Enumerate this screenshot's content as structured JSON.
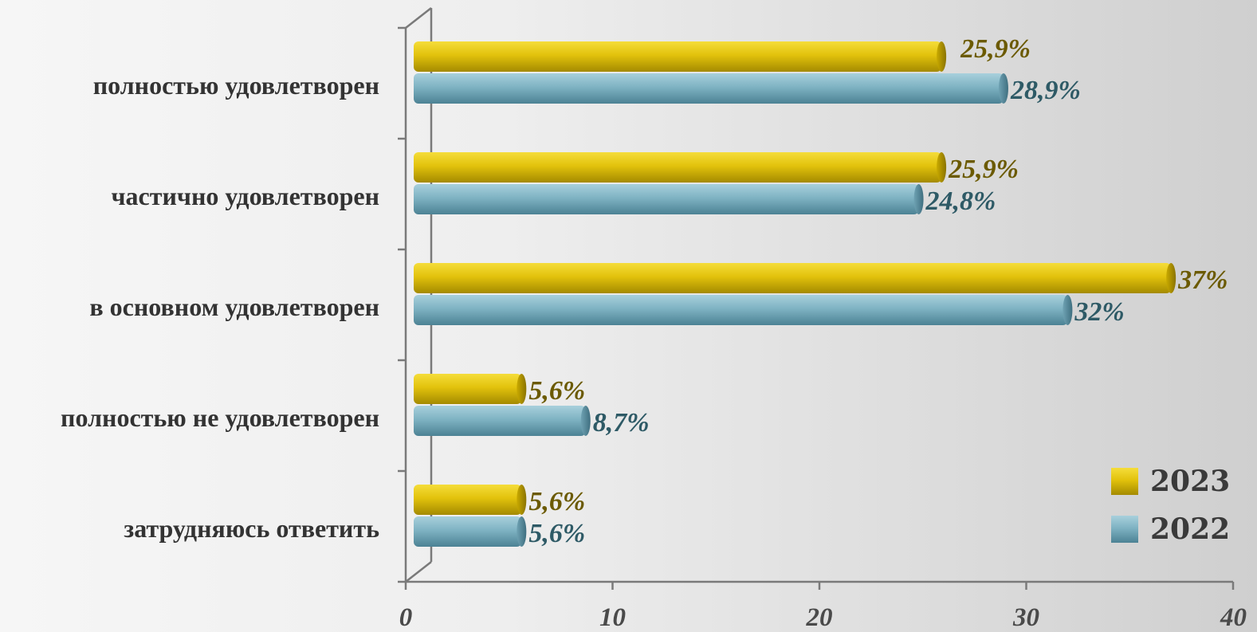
{
  "chart_data": {
    "type": "bar",
    "orientation": "horizontal",
    "categories": [
      "полностью удовлетворен",
      "частично удовлетворен",
      "в основном удовлетворен",
      "полностью не удовлетворен",
      "затрудняюсь ответить"
    ],
    "series": [
      {
        "name": "2023",
        "color": "#d8b800",
        "label_color": "#6b5a00",
        "values": [
          25.9,
          25.9,
          37,
          5.6,
          5.6
        ],
        "labels": [
          "25,9%",
          "25,9%",
          "37%",
          "5,6%",
          "5,6%"
        ]
      },
      {
        "name": "2022",
        "color": "#74aabb",
        "label_color": "#2e5a66",
        "values": [
          28.9,
          24.8,
          32,
          8.7,
          5.6
        ],
        "labels": [
          "28,9%",
          "24,8%",
          "32%",
          "8,7%",
          "5,6%"
        ]
      }
    ],
    "xlim": [
      0,
      40
    ],
    "xticks": [
      "0",
      "10",
      "20",
      "30",
      "40"
    ],
    "grid": false,
    "legend_position": "bottom-right",
    "style": "3d-cylinder"
  }
}
